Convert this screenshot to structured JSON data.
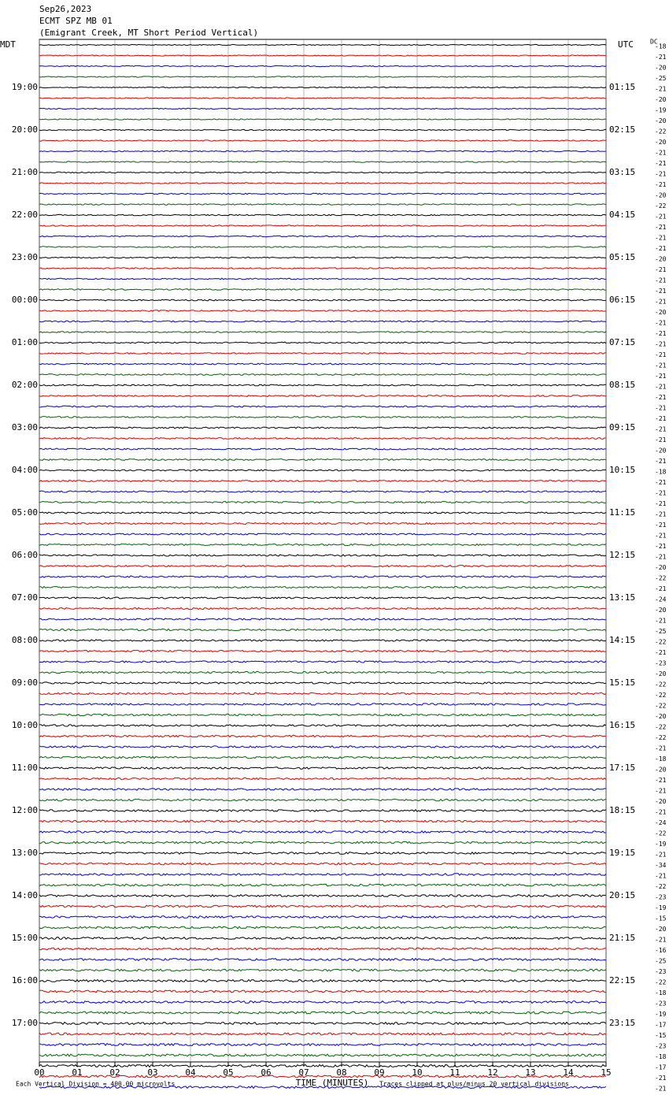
{
  "chart_data": {
    "type": "seismogram",
    "title_lines": [
      "Sep26,2023",
      "ECMT SPZ MB 01",
      "(Emigrant Creek, MT Short Period Vertical)"
    ],
    "left_header": "MDT",
    "right_header": "UTC",
    "dc_header": "DC",
    "local_hours": [
      null,
      "19:00",
      "20:00",
      "21:00",
      "22:00",
      "23:00",
      "00:00",
      "01:00",
      "02:00",
      "03:00",
      "04:00",
      "05:00",
      "06:00",
      "07:00",
      "08:00",
      "09:00",
      "10:00",
      "11:00",
      "12:00",
      "13:00",
      "14:00",
      "15:00",
      "16:00",
      "17:00"
    ],
    "utc_hours": [
      null,
      "01:15",
      "02:15",
      "03:15",
      "04:15",
      "05:15",
      "06:15",
      "07:15",
      "08:15",
      "09:15",
      "10:15",
      "11:15",
      "12:15",
      "13:15",
      "14:15",
      "15:15",
      "16:15",
      "17:15",
      "18:15",
      "19:15",
      "20:15",
      "21:15",
      "22:15",
      "23:15"
    ],
    "dc_offsets": [
      -18,
      -21,
      -20,
      -25,
      -21,
      -20,
      -19,
      -20,
      -22,
      -20,
      -21,
      -21,
      -21,
      -21,
      -20,
      -22,
      -21,
      -21,
      -21,
      -21,
      -20,
      -21,
      -21,
      -21,
      -21,
      -20,
      -21,
      -21,
      -21,
      -21,
      -21,
      -21,
      -21,
      -21,
      -21,
      -21,
      -21,
      -21,
      -20,
      -21,
      -18,
      -21,
      -21,
      -21,
      -21,
      -21,
      -21,
      -21,
      -21,
      -20,
      -22,
      -21,
      -24,
      -20,
      -21,
      -25,
      -22,
      -21,
      -23,
      -20,
      -22,
      -22,
      -22,
      -20,
      -22,
      -22,
      -21,
      -18,
      -20,
      -21,
      -21,
      -20,
      -21,
      -24,
      -22,
      -19,
      -21,
      -34,
      -21,
      -22,
      -23,
      -19,
      -15,
      -20,
      -21,
      -16,
      -25,
      -23,
      -22,
      -18,
      -23,
      -19,
      -17,
      -15,
      -23,
      -18,
      -17,
      -21,
      -21,
      -21
    ],
    "trace_colors": [
      "#000000",
      "#e00000",
      "#0000e0",
      "#006400"
    ],
    "xlim": [
      0,
      15
    ],
    "xticks": [
      {
        "value": 0,
        "label": "00"
      },
      {
        "value": 1,
        "label": "01"
      },
      {
        "value": 2,
        "label": "02"
      },
      {
        "value": 3,
        "label": "03"
      },
      {
        "value": 4,
        "label": "04"
      },
      {
        "value": 5,
        "label": "05"
      },
      {
        "value": 6,
        "label": "06"
      },
      {
        "value": 7,
        "label": "07"
      },
      {
        "value": 8,
        "label": "08"
      },
      {
        "value": 9,
        "label": "09"
      },
      {
        "value": 10,
        "label": "10"
      },
      {
        "value": 11,
        "label": "11"
      },
      {
        "value": 12,
        "label": "12"
      },
      {
        "value": 13,
        "label": "13"
      },
      {
        "value": 14,
        "label": "14"
      },
      {
        "value": 15,
        "label": "15"
      }
    ],
    "xlabel": "TIME (MINUTES)",
    "footer_left": "Each Vertical Division =  400.00 microvolts",
    "footer_right": "Traces clipped at plus/minus 20 vertical divisions",
    "grid": true
  }
}
